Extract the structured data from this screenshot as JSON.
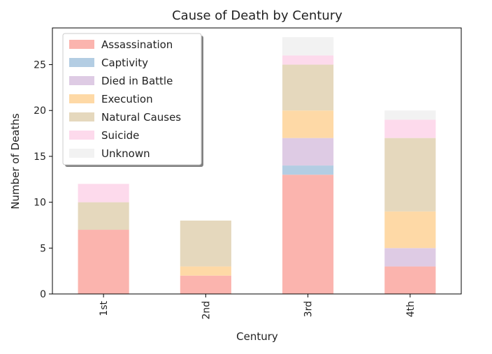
{
  "chart_data": {
    "type": "bar",
    "stacked": true,
    "title": "Cause of Death by Century",
    "xlabel": "Century",
    "ylabel": "Number of Deaths",
    "categories": [
      "1st",
      "2nd",
      "3rd",
      "4th"
    ],
    "ylim": [
      0,
      29
    ],
    "yticks": [
      0,
      5,
      10,
      15,
      20,
      25
    ],
    "grid": false,
    "legend_position": "top-left",
    "series": [
      {
        "name": "Assassination",
        "color": "#fbb4ae",
        "values": [
          7,
          2,
          13,
          3
        ]
      },
      {
        "name": "Captivity",
        "color": "#b3cde3",
        "values": [
          0,
          0,
          1,
          0
        ]
      },
      {
        "name": "Died in Battle",
        "color": "#decbe4",
        "values": [
          0,
          0,
          3,
          2
        ]
      },
      {
        "name": "Execution",
        "color": "#fed9a6",
        "values": [
          0,
          1,
          3,
          4
        ]
      },
      {
        "name": "Natural Causes",
        "color": "#e5d8bd",
        "values": [
          3,
          5,
          5,
          8
        ]
      },
      {
        "name": "Suicide",
        "color": "#fddaec",
        "values": [
          2,
          0,
          1,
          2
        ]
      },
      {
        "name": "Unknown",
        "color": "#f2f2f2",
        "values": [
          0,
          0,
          2,
          1
        ]
      }
    ]
  }
}
